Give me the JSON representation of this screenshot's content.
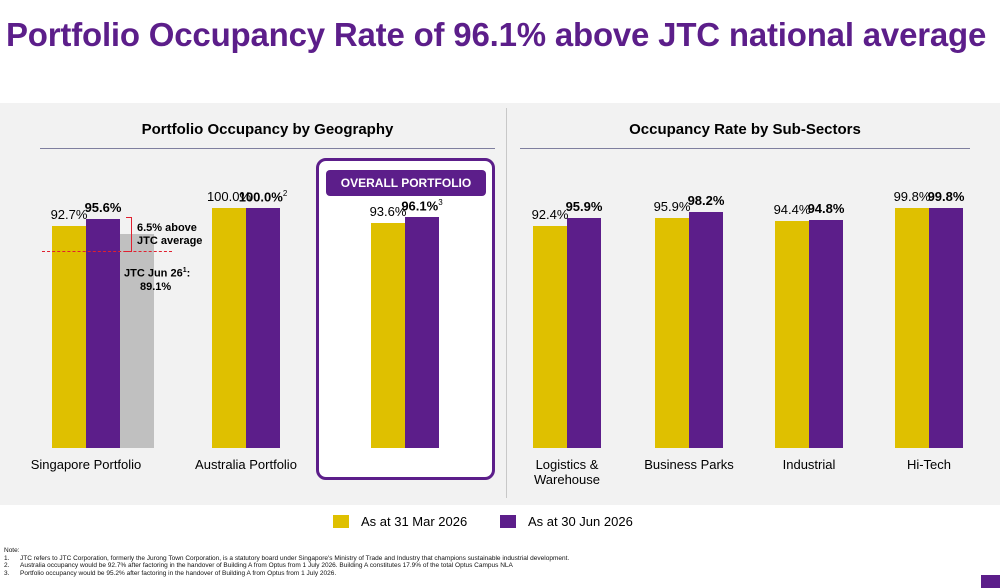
{
  "title": "Portfolio Occupancy Rate of 96.1% above JTC national average",
  "colors": {
    "mar": "#dfc000",
    "jun": "#5c1e8a",
    "jtc": "#c0c0c0",
    "accent": "#5c1e8a",
    "dashed": "#e0202f"
  },
  "chart_data": [
    {
      "type": "bar",
      "title": "Portfolio Occupancy by Geography",
      "categories": [
        "Singapore Portfolio",
        "Australia Portfolio",
        "OVERALL PORTFOLIO"
      ],
      "series": [
        {
          "name": "As at 31 Mar 2026",
          "values": [
            92.7,
            100.0,
            93.6
          ],
          "labels": [
            "92.7%",
            "100.0%",
            "93.6%"
          ]
        },
        {
          "name": "As at 30 Jun 2026",
          "values": [
            95.6,
            100.0,
            96.1
          ],
          "labels": [
            "95.6%",
            "100.0%",
            "96.1%"
          ],
          "superscripts": [
            "",
            "2",
            "3"
          ]
        }
      ],
      "jtc_average": {
        "value": 89.1,
        "label_line1": "JTC Jun 26",
        "superscript": "1",
        "label_suffix": ":",
        "label_line2": "89.1%"
      },
      "above_note": {
        "line1": "6.5% above",
        "line2": "JTC average"
      },
      "overall_badge": "OVERALL PORTFOLIO"
    },
    {
      "type": "bar",
      "title": "Occupancy Rate by Sub-Sectors",
      "categories": [
        "Logistics & Warehouse",
        "Business Parks",
        "Industrial",
        "Hi-Tech"
      ],
      "category_lines": [
        [
          "Logistics &",
          "Warehouse"
        ],
        [
          "Business Parks"
        ],
        [
          "Industrial"
        ],
        [
          "Hi-Tech"
        ]
      ],
      "series": [
        {
          "name": "As at 31 Mar 2026",
          "values": [
            92.4,
            95.9,
            94.4,
            99.8
          ],
          "labels": [
            "92.4%",
            "95.9%",
            "94.4%",
            "99.8%"
          ]
        },
        {
          "name": "As at 30 Jun 2026",
          "values": [
            95.9,
            98.2,
            94.8,
            99.8
          ],
          "labels": [
            "95.9%",
            "98.2%",
            "94.8%",
            "99.8%"
          ]
        }
      ]
    }
  ],
  "legend": [
    {
      "label": "As at 31 Mar 2026",
      "color": "#dfc000"
    },
    {
      "label": "As at 30 Jun 2026",
      "color": "#5c1e8a"
    }
  ],
  "notes": {
    "heading": "Note:",
    "items": [
      {
        "num": "1.",
        "text": "JTC refers to JTC Corporation, formerly the Jurong Town Corporation, is a statutory board under Singapore's Ministry of Trade and Industry that champions sustainable industrial development."
      },
      {
        "num": "2.",
        "text": "Australia occupancy would be 92.7% after factoring in the handover of Building A from Optus from 1 July 2026. Building A constitutes 17.9% of the total Optus Campus NLA"
      },
      {
        "num": "3.",
        "text": "Portfolio occupancy would be 95.2% after factoring in the handover of Building A from Optus from 1 July 2026."
      }
    ]
  }
}
